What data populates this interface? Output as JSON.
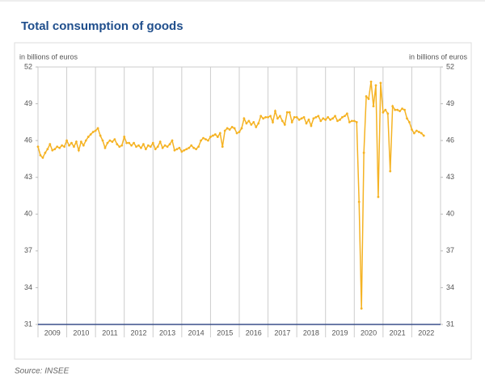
{
  "chart_data": {
    "type": "line",
    "title": "Total consumption of goods",
    "source": "Source: INSEE",
    "y_label": "in billions of euros",
    "y2_label": "in billions of euros",
    "xlim": [
      2009,
      2023
    ],
    "xticks": [
      2009,
      2010,
      2011,
      2012,
      2013,
      2014,
      2015,
      2016,
      2017,
      2018,
      2019,
      2020,
      2021,
      2022
    ],
    "ylim": [
      31,
      52
    ],
    "yticks": [
      31,
      34,
      37,
      40,
      43,
      46,
      49,
      52
    ],
    "y2lim": [
      31,
      52
    ],
    "y2ticks": [
      31,
      34,
      37,
      40,
      43,
      46,
      49,
      52
    ],
    "grid": "x",
    "x": [
      "2009-01",
      "2009-02",
      "2009-03",
      "2009-04",
      "2009-05",
      "2009-06",
      "2009-07",
      "2009-08",
      "2009-09",
      "2009-10",
      "2009-11",
      "2009-12",
      "2010-01",
      "2010-02",
      "2010-03",
      "2010-04",
      "2010-05",
      "2010-06",
      "2010-07",
      "2010-08",
      "2010-09",
      "2010-10",
      "2010-11",
      "2010-12",
      "2011-01",
      "2011-02",
      "2011-03",
      "2011-04",
      "2011-05",
      "2011-06",
      "2011-07",
      "2011-08",
      "2011-09",
      "2011-10",
      "2011-11",
      "2011-12",
      "2012-01",
      "2012-02",
      "2012-03",
      "2012-04",
      "2012-05",
      "2012-06",
      "2012-07",
      "2012-08",
      "2012-09",
      "2012-10",
      "2012-11",
      "2012-12",
      "2013-01",
      "2013-02",
      "2013-03",
      "2013-04",
      "2013-05",
      "2013-06",
      "2013-07",
      "2013-08",
      "2013-09",
      "2013-10",
      "2013-11",
      "2013-12",
      "2014-01",
      "2014-02",
      "2014-03",
      "2014-04",
      "2014-05",
      "2014-06",
      "2014-07",
      "2014-08",
      "2014-09",
      "2014-10",
      "2014-11",
      "2014-12",
      "2015-01",
      "2015-02",
      "2015-03",
      "2015-04",
      "2015-05",
      "2015-06",
      "2015-07",
      "2015-08",
      "2015-09",
      "2015-10",
      "2015-11",
      "2015-12",
      "2016-01",
      "2016-02",
      "2016-03",
      "2016-04",
      "2016-05",
      "2016-06",
      "2016-07",
      "2016-08",
      "2016-09",
      "2016-10",
      "2016-11",
      "2016-12",
      "2017-01",
      "2017-02",
      "2017-03",
      "2017-04",
      "2017-05",
      "2017-06",
      "2017-07",
      "2017-08",
      "2017-09",
      "2017-10",
      "2017-11",
      "2017-12",
      "2018-01",
      "2018-02",
      "2018-03",
      "2018-04",
      "2018-05",
      "2018-06",
      "2018-07",
      "2018-08",
      "2018-09",
      "2018-10",
      "2018-11",
      "2018-12",
      "2019-01",
      "2019-02",
      "2019-03",
      "2019-04",
      "2019-05",
      "2019-06",
      "2019-07",
      "2019-08",
      "2019-09",
      "2019-10",
      "2019-11",
      "2019-12",
      "2020-01",
      "2020-02",
      "2020-03",
      "2020-04",
      "2020-05",
      "2020-06",
      "2020-07",
      "2020-08",
      "2020-09",
      "2020-10",
      "2020-11",
      "2020-12",
      "2021-01",
      "2021-02",
      "2021-03",
      "2021-04",
      "2021-05",
      "2021-06",
      "2021-07",
      "2021-08",
      "2021-09",
      "2021-10",
      "2021-11",
      "2021-12",
      "2022-01",
      "2022-02",
      "2022-03",
      "2022-04",
      "2022-05",
      "2022-06"
    ],
    "color": "#f5b324",
    "values": [
      45.5,
      44.8,
      44.6,
      45.0,
      45.3,
      45.7,
      45.2,
      45.3,
      45.5,
      45.4,
      45.6,
      45.5,
      46.0,
      45.6,
      45.8,
      45.5,
      45.9,
      45.2,
      45.9,
      45.6,
      46.0,
      46.3,
      46.5,
      46.7,
      46.8,
      47.0,
      46.4,
      46.0,
      45.4,
      45.8,
      46.0,
      45.9,
      46.1,
      45.7,
      45.5,
      45.6,
      46.3,
      45.8,
      45.8,
      45.6,
      45.8,
      45.5,
      45.6,
      45.4,
      45.7,
      45.3,
      45.6,
      45.5,
      45.8,
      45.3,
      45.5,
      45.9,
      45.4,
      45.6,
      45.5,
      45.7,
      46.0,
      45.2,
      45.3,
      45.4,
      45.1,
      45.2,
      45.3,
      45.4,
      45.6,
      45.4,
      45.3,
      45.5,
      46.0,
      46.2,
      46.1,
      46.0,
      46.3,
      46.4,
      46.5,
      46.3,
      46.6,
      45.5,
      46.8,
      47.0,
      46.9,
      47.1,
      47.0,
      46.6,
      46.7,
      47.0,
      47.8,
      47.4,
      47.6,
      47.3,
      47.5,
      47.1,
      47.4,
      48.0,
      47.8,
      47.9,
      47.9,
      48.0,
      47.5,
      48.4,
      47.8,
      48.0,
      47.6,
      47.3,
      48.3,
      48.3,
      47.5,
      47.9,
      47.9,
      47.7,
      47.8,
      47.9,
      47.4,
      47.7,
      47.2,
      47.8,
      47.9,
      48.0,
      47.6,
      47.8,
      47.7,
      47.9,
      47.7,
      47.8,
      48.0,
      47.6,
      47.7,
      47.9,
      48.0,
      48.2,
      47.5,
      47.6,
      47.6,
      47.5,
      41.0,
      32.3,
      45.0,
      49.6,
      49.4,
      50.8,
      48.8,
      50.5,
      41.4,
      50.7,
      48.3,
      48.5,
      48.2,
      43.5,
      48.8,
      48.5,
      48.5,
      48.4,
      48.6,
      48.5,
      47.8,
      47.5,
      46.9,
      46.6,
      46.8,
      46.7,
      46.6,
      46.4
    ]
  }
}
